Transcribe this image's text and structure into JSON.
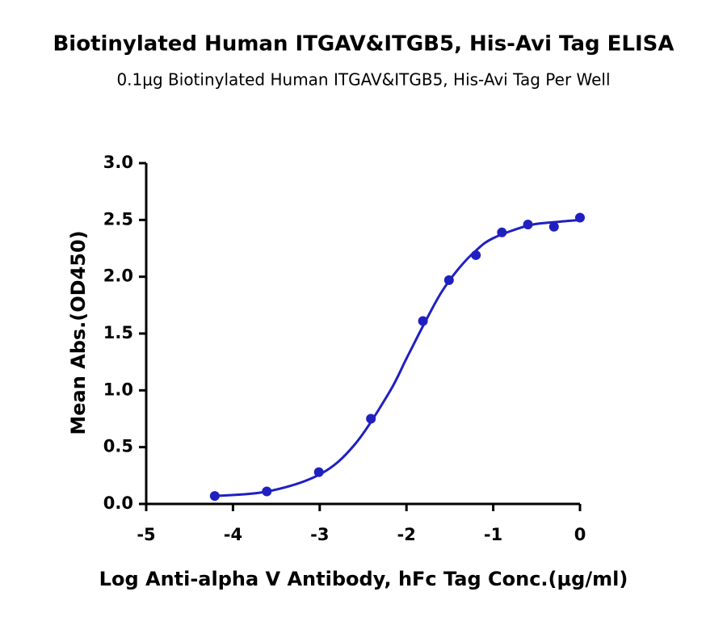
{
  "chart_data": {
    "type": "scatter",
    "title": "Biotinylated Human ITGAV&ITGB5, His-Avi Tag ELISA",
    "subtitle": "0.1μg Biotinylated Human ITGAV&ITGB5, His-Avi Tag Per Well",
    "xlabel": "Log Anti-alpha V Antibody, hFc Tag Conc.(μg/ml)",
    "ylabel": "Mean Abs.(OD450)",
    "x": [
      -4.21,
      -3.61,
      -3.01,
      -2.41,
      -1.81,
      -1.51,
      -1.2,
      -0.9,
      -0.6,
      -0.3,
      0
    ],
    "values": [
      0.07,
      0.11,
      0.28,
      0.75,
      1.61,
      1.97,
      2.19,
      2.39,
      2.46,
      2.44,
      2.52
    ],
    "fit": {
      "x": [
        -4.21,
        -3.6,
        -3.0,
        -2.6,
        -2.2,
        -2.0,
        -1.8,
        -1.6,
        -1.4,
        -1.2,
        -1.0,
        -0.6,
        -0.3,
        0
      ],
      "values": [
        0.07,
        0.11,
        0.26,
        0.52,
        0.98,
        1.28,
        1.58,
        1.86,
        2.07,
        2.23,
        2.34,
        2.45,
        2.48,
        2.5
      ]
    },
    "color": "#2020c0",
    "xlim": [
      -5,
      0
    ],
    "ylim": [
      0,
      3
    ],
    "xticks": [
      -5,
      -4,
      -3,
      -2,
      -1,
      0
    ],
    "yticks": [
      {
        "value": 0,
        "label": "0.0"
      },
      0.5,
      {
        "value": 1,
        "label": "1.0"
      },
      1.5,
      {
        "value": 2,
        "label": "2.0"
      },
      2.5,
      {
        "value": 3,
        "label": "3.0"
      }
    ]
  }
}
